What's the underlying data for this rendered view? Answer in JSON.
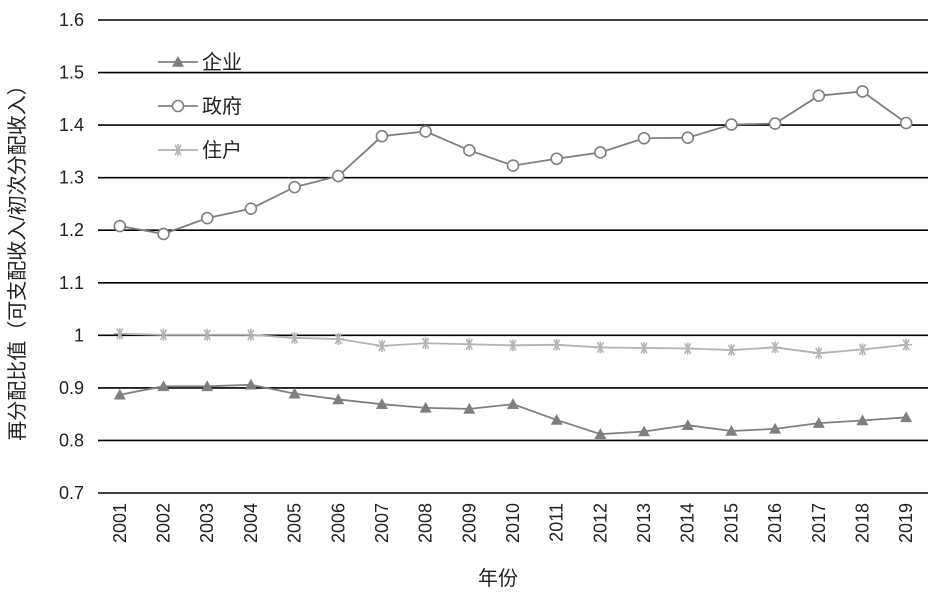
{
  "chart_data": {
    "type": "line",
    "xlabel": "年份",
    "ylabel": "再分配比值（可支配收入/初次分配收入）",
    "ylim": [
      0.7,
      1.6
    ],
    "yticks": [
      0.7,
      0.8,
      0.9,
      1,
      1.1,
      1.2,
      1.3,
      1.4,
      1.5,
      1.6
    ],
    "ytick_labels": [
      "0.7",
      "0.8",
      "0.9",
      "1",
      "1.1",
      "1.2",
      "1.3",
      "1.4",
      "1.5",
      "1.6"
    ],
    "grid": "horizontal",
    "legend_position": "top-left",
    "categories": [
      "2001",
      "2002",
      "2003",
      "2004",
      "2005",
      "2006",
      "2007",
      "2008",
      "2009",
      "2010",
      "2011",
      "2012",
      "2013",
      "2014",
      "2015",
      "2016",
      "2017",
      "2018",
      "2019"
    ],
    "series": [
      {
        "name": "企业",
        "marker": "triangle",
        "color": "#7f7f7f",
        "values": [
          0.887,
          0.903,
          0.903,
          0.906,
          0.889,
          0.878,
          0.869,
          0.862,
          0.86,
          0.869,
          0.839,
          0.812,
          0.817,
          0.829,
          0.818,
          0.822,
          0.833,
          0.838,
          0.844
        ]
      },
      {
        "name": "政府",
        "marker": "circle",
        "color": "#7f7f7f",
        "values": [
          1.208,
          1.193,
          1.223,
          1.241,
          1.282,
          1.303,
          1.379,
          1.388,
          1.352,
          1.323,
          1.336,
          1.348,
          1.375,
          1.376,
          1.401,
          1.403,
          1.456,
          1.464,
          1.404
        ]
      },
      {
        "name": "住户",
        "marker": "asterisk",
        "color": "#b3b3b3",
        "values": [
          1.003,
          1.001,
          1.001,
          1.001,
          0.995,
          0.993,
          0.98,
          0.985,
          0.983,
          0.981,
          0.982,
          0.977,
          0.976,
          0.975,
          0.972,
          0.977,
          0.966,
          0.973,
          0.982
        ]
      }
    ]
  }
}
